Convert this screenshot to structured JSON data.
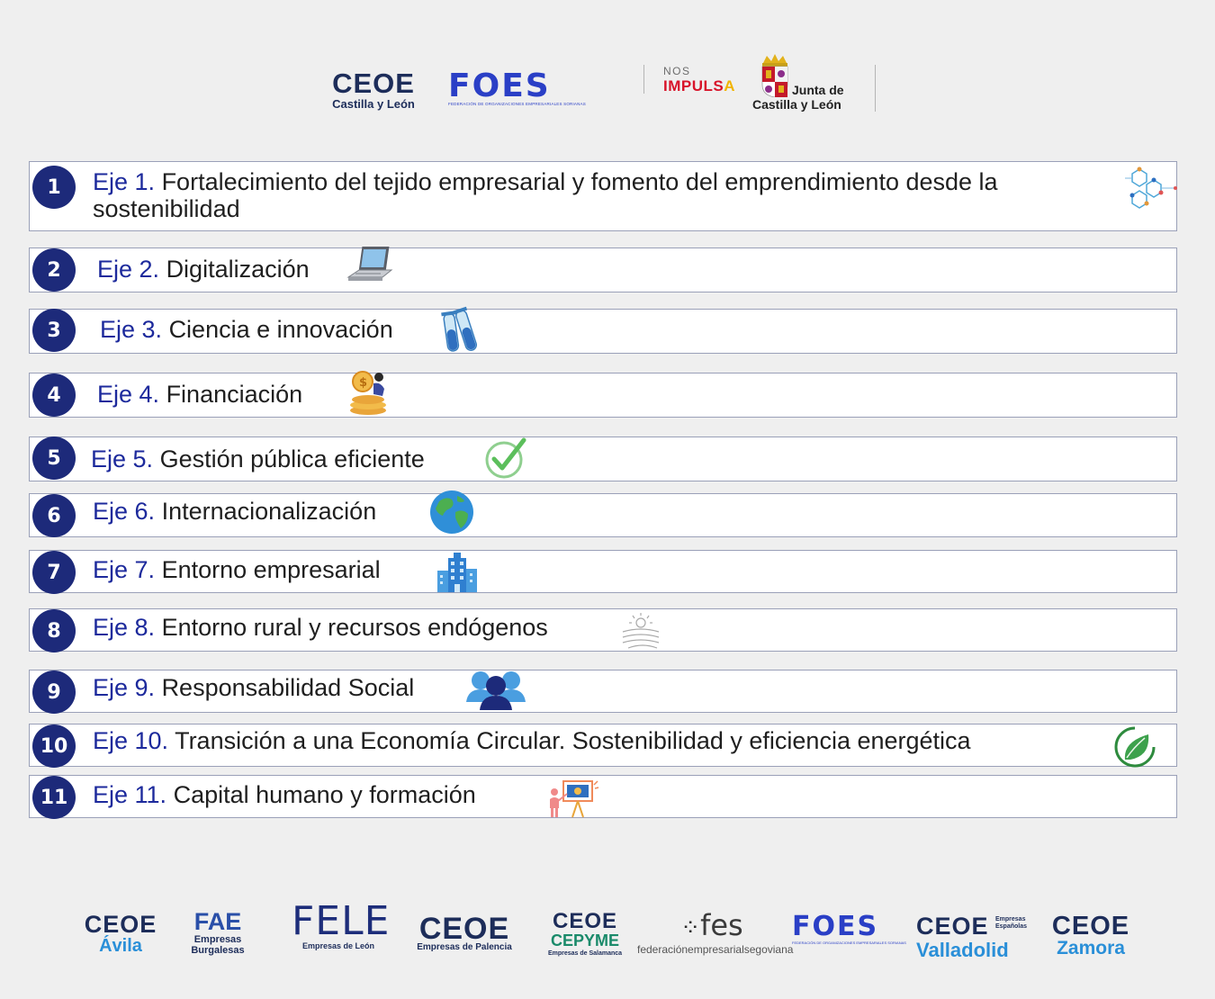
{
  "header": {
    "ceoe_cyl": {
      "name": "CEOE",
      "sub": "Castilla y León"
    },
    "foes": {
      "name": "FOES",
      "sub": "FEDERACIÓN DE ORGANIZACIONES EMPRESARIALES SORIANAS"
    },
    "nos_impulsa": {
      "line1": "NOS",
      "line2": "IMPULS",
      "line2_a": "A"
    },
    "junta": {
      "line1": "Junta de",
      "line2": "Castilla y León"
    }
  },
  "axes": [
    {
      "num": "1",
      "eje": "Eje 1.",
      "text": "Fortalecimiento del tejido empresarial y fomento del emprendimiento desde la sostenibilidad",
      "icon": "molecule-network-icon"
    },
    {
      "num": "2",
      "eje": "Eje 2.",
      "text": "Digitalización",
      "icon": "laptop-icon"
    },
    {
      "num": "3",
      "eje": "Eje 3.",
      "text": "Ciencia e innovación",
      "icon": "test-tubes-icon"
    },
    {
      "num": "4",
      "eje": "Eje 4.",
      "text": "Financiación",
      "icon": "coins-person-icon"
    },
    {
      "num": "5",
      "eje": "Eje 5.",
      "text": "Gestión pública eficiente",
      "icon": "checkmark-circle-icon"
    },
    {
      "num": "6",
      "eje": "Eje 6.",
      "text": "Internacionalización",
      "icon": "globe-icon"
    },
    {
      "num": "7",
      "eje": "Eje 7.",
      "text": "Entorno empresarial",
      "icon": "office-building-icon"
    },
    {
      "num": "8",
      "eje": "Eje 8.",
      "text": "Entorno rural y recursos endógenos",
      "icon": "sun-fields-icon"
    },
    {
      "num": "9",
      "eje": "Eje 9.",
      "text": "Responsabilidad Social",
      "icon": "people-group-icon"
    },
    {
      "num": "10",
      "eje": "Eje 10.",
      "text": "Transición a una Economía Circular. Sostenibilidad y eficiencia energética",
      "icon": "leaf-circle-icon"
    },
    {
      "num": "11",
      "eje": "Eje 11.",
      "text": "Capital humano y formación",
      "icon": "presentation-teacher-icon"
    }
  ],
  "footer": {
    "avila": {
      "name": "CEOE",
      "sub": "Ávila"
    },
    "fae": {
      "name": "FAE",
      "sub1": "Empresas",
      "sub2": "Burgalesas"
    },
    "fele": {
      "name": "FELE",
      "sub": "Empresas de León"
    },
    "palencia": {
      "name": "CEOE",
      "sub": "Empresas de Palencia"
    },
    "salamanca": {
      "name": "CEOE",
      "name2": "CEPYME",
      "sub": "Empresas de Salamanca"
    },
    "fes": {
      "name": "fes",
      "sub": "federaciónempresarialsegoviana"
    },
    "foes": {
      "name": "FOES",
      "sub": "FEDERACIÓN DE ORGANIZACIONES EMPRESARIALES SORIANAS"
    },
    "valladolid": {
      "name": "CEOE",
      "small": "Empresas Españolas",
      "sub": "Valladolid"
    },
    "zamora": {
      "name": "CEOE",
      "sub": "Zamora"
    }
  },
  "colors": {
    "badge": "#1d2a7a",
    "eje_text": "#1d2a9c",
    "background": "#efefef"
  }
}
